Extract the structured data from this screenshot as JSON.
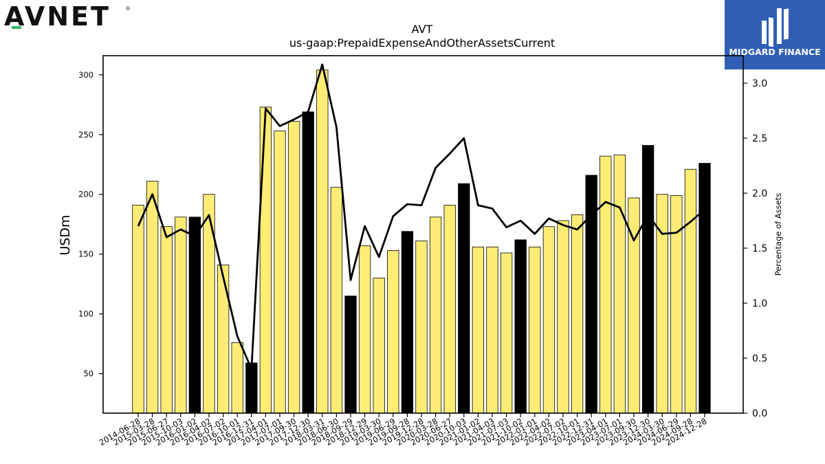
{
  "brand_left": {
    "name": "AVNET",
    "reg": "®"
  },
  "brand_right": {
    "name": "MIDGARD FINANCE"
  },
  "chart_data": {
    "type": "bar",
    "title": "AVT",
    "subtitle": "us-gaap:PrepaidExpenseAndOtherAssetsCurrent",
    "ylabel": "USDm",
    "y2label": "Percentage of Assets",
    "ylim": [
      17,
      316
    ],
    "y2lim": [
      0,
      3.25
    ],
    "yticks": [
      50,
      100,
      150,
      200,
      250,
      300
    ],
    "y2ticks": [
      "0.0",
      "0.5",
      "1.0",
      "1.5",
      "2.0",
      "2.5",
      "3.0"
    ],
    "categories": [
      "2014-06-28",
      "2015-03-28",
      "2015-06-27",
      "2015-10-03",
      "2016-01-02",
      "2016-04-02",
      "2016-07-02",
      "2016-10-01",
      "2016-12-31",
      "2017-04-01",
      "2017-07-01",
      "2017-09-30",
      "2017-12-30",
      "2018-03-31",
      "2018-06-30",
      "2018-09-29",
      "2018-12-29",
      "2019-03-30",
      "2019-06-29",
      "2019-09-28",
      "2019-12-28",
      "2020-03-28",
      "2020-06-27",
      "2020-10-03",
      "2021-01-02",
      "2021-04-03",
      "2021-07-03",
      "2021-10-02",
      "2022-01-01",
      "2022-04-02",
      "2022-07-02",
      "2022-10-01",
      "2022-12-31",
      "2023-04-01",
      "2023-07-01",
      "2023-09-30",
      "2023-12-30",
      "2024-03-30",
      "2024-06-29",
      "2024-09-28",
      "2024-12-28"
    ],
    "series": [
      {
        "type": "bar",
        "values": [
          191,
          211,
          173,
          181,
          181,
          200,
          141,
          76,
          59,
          273,
          253,
          261,
          269,
          304,
          206,
          115,
          157,
          130,
          153,
          169,
          161,
          181,
          191,
          209,
          156,
          156,
          151,
          162,
          156,
          173,
          178,
          183,
          216,
          232,
          233,
          197,
          241,
          200,
          199,
          221,
          226
        ]
      },
      {
        "type": "line",
        "values": [
          1.7,
          1.99,
          1.6,
          1.67,
          1.61,
          1.8,
          1.24,
          0.7,
          0.4,
          2.77,
          2.61,
          2.67,
          2.74,
          3.17,
          2.6,
          1.21,
          1.7,
          1.42,
          1.79,
          1.9,
          1.89,
          2.23,
          2.36,
          2.5,
          1.89,
          1.86,
          1.69,
          1.75,
          1.63,
          1.77,
          1.71,
          1.67,
          1.8,
          1.92,
          1.87,
          1.57,
          1.8,
          1.63,
          1.64,
          1.74,
          1.85
        ]
      }
    ],
    "highlighted_categories": [
      "2016-01-02",
      "2016-12-31",
      "2017-12-30",
      "2018-09-29",
      "2019-09-28",
      "2020-10-03",
      "2021-10-02",
      "2022-12-31",
      "2023-12-30",
      "2024-12-28"
    ],
    "colors": {
      "bar": "#ffec75",
      "bar_highlight": "#000000",
      "bar_edge": "#000000",
      "line": "#000000"
    },
    "grid": false,
    "legend": "none"
  }
}
